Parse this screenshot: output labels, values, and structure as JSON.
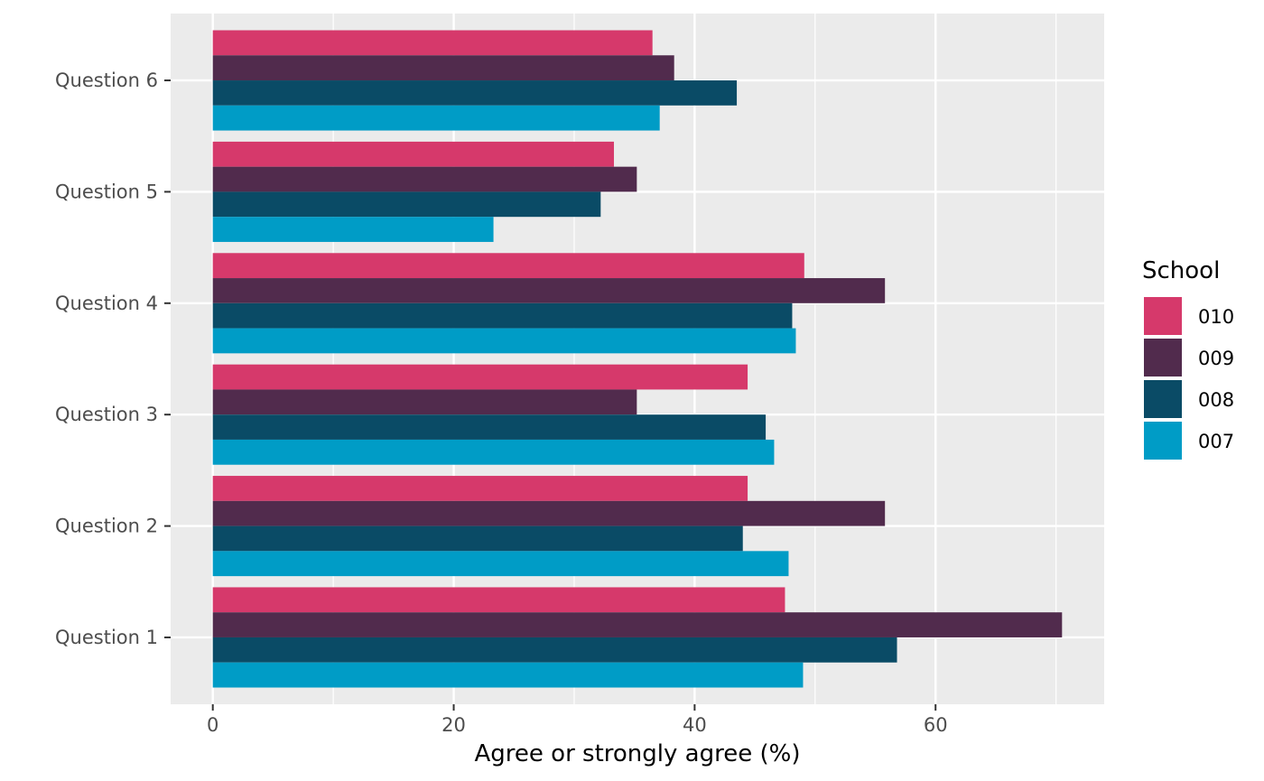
{
  "chart_data": {
    "type": "bar",
    "orientation": "horizontal",
    "categories": [
      "Question 1",
      "Question 2",
      "Question 3",
      "Question 4",
      "Question 5",
      "Question 6"
    ],
    "series": [
      {
        "name": "007",
        "color": "#009cc6",
        "values": [
          49.0,
          47.8,
          46.6,
          48.4,
          23.3,
          37.1
        ]
      },
      {
        "name": "008",
        "color": "#0a4b66",
        "values": [
          56.8,
          44.0,
          45.9,
          48.1,
          32.2,
          43.5
        ]
      },
      {
        "name": "009",
        "color": "#512b4d",
        "values": [
          70.5,
          55.8,
          35.2,
          55.8,
          35.2,
          38.3
        ]
      },
      {
        "name": "010",
        "color": "#d6396b",
        "values": [
          47.5,
          44.4,
          44.4,
          49.1,
          33.3,
          36.5
        ]
      }
    ],
    "xlabel": "Agree or strongly agree (%)",
    "ylabel": "",
    "xlim": [
      -3.5,
      74
    ],
    "xticks": [
      0,
      20,
      40,
      60
    ],
    "grid": true,
    "legend": {
      "title": "School",
      "position": "right",
      "entries": [
        "010",
        "009",
        "008",
        "007"
      ]
    },
    "colors": {
      "panel_background": "#ebebeb",
      "grid": "#ffffff",
      "tick_label": "#4d4d4d"
    }
  }
}
